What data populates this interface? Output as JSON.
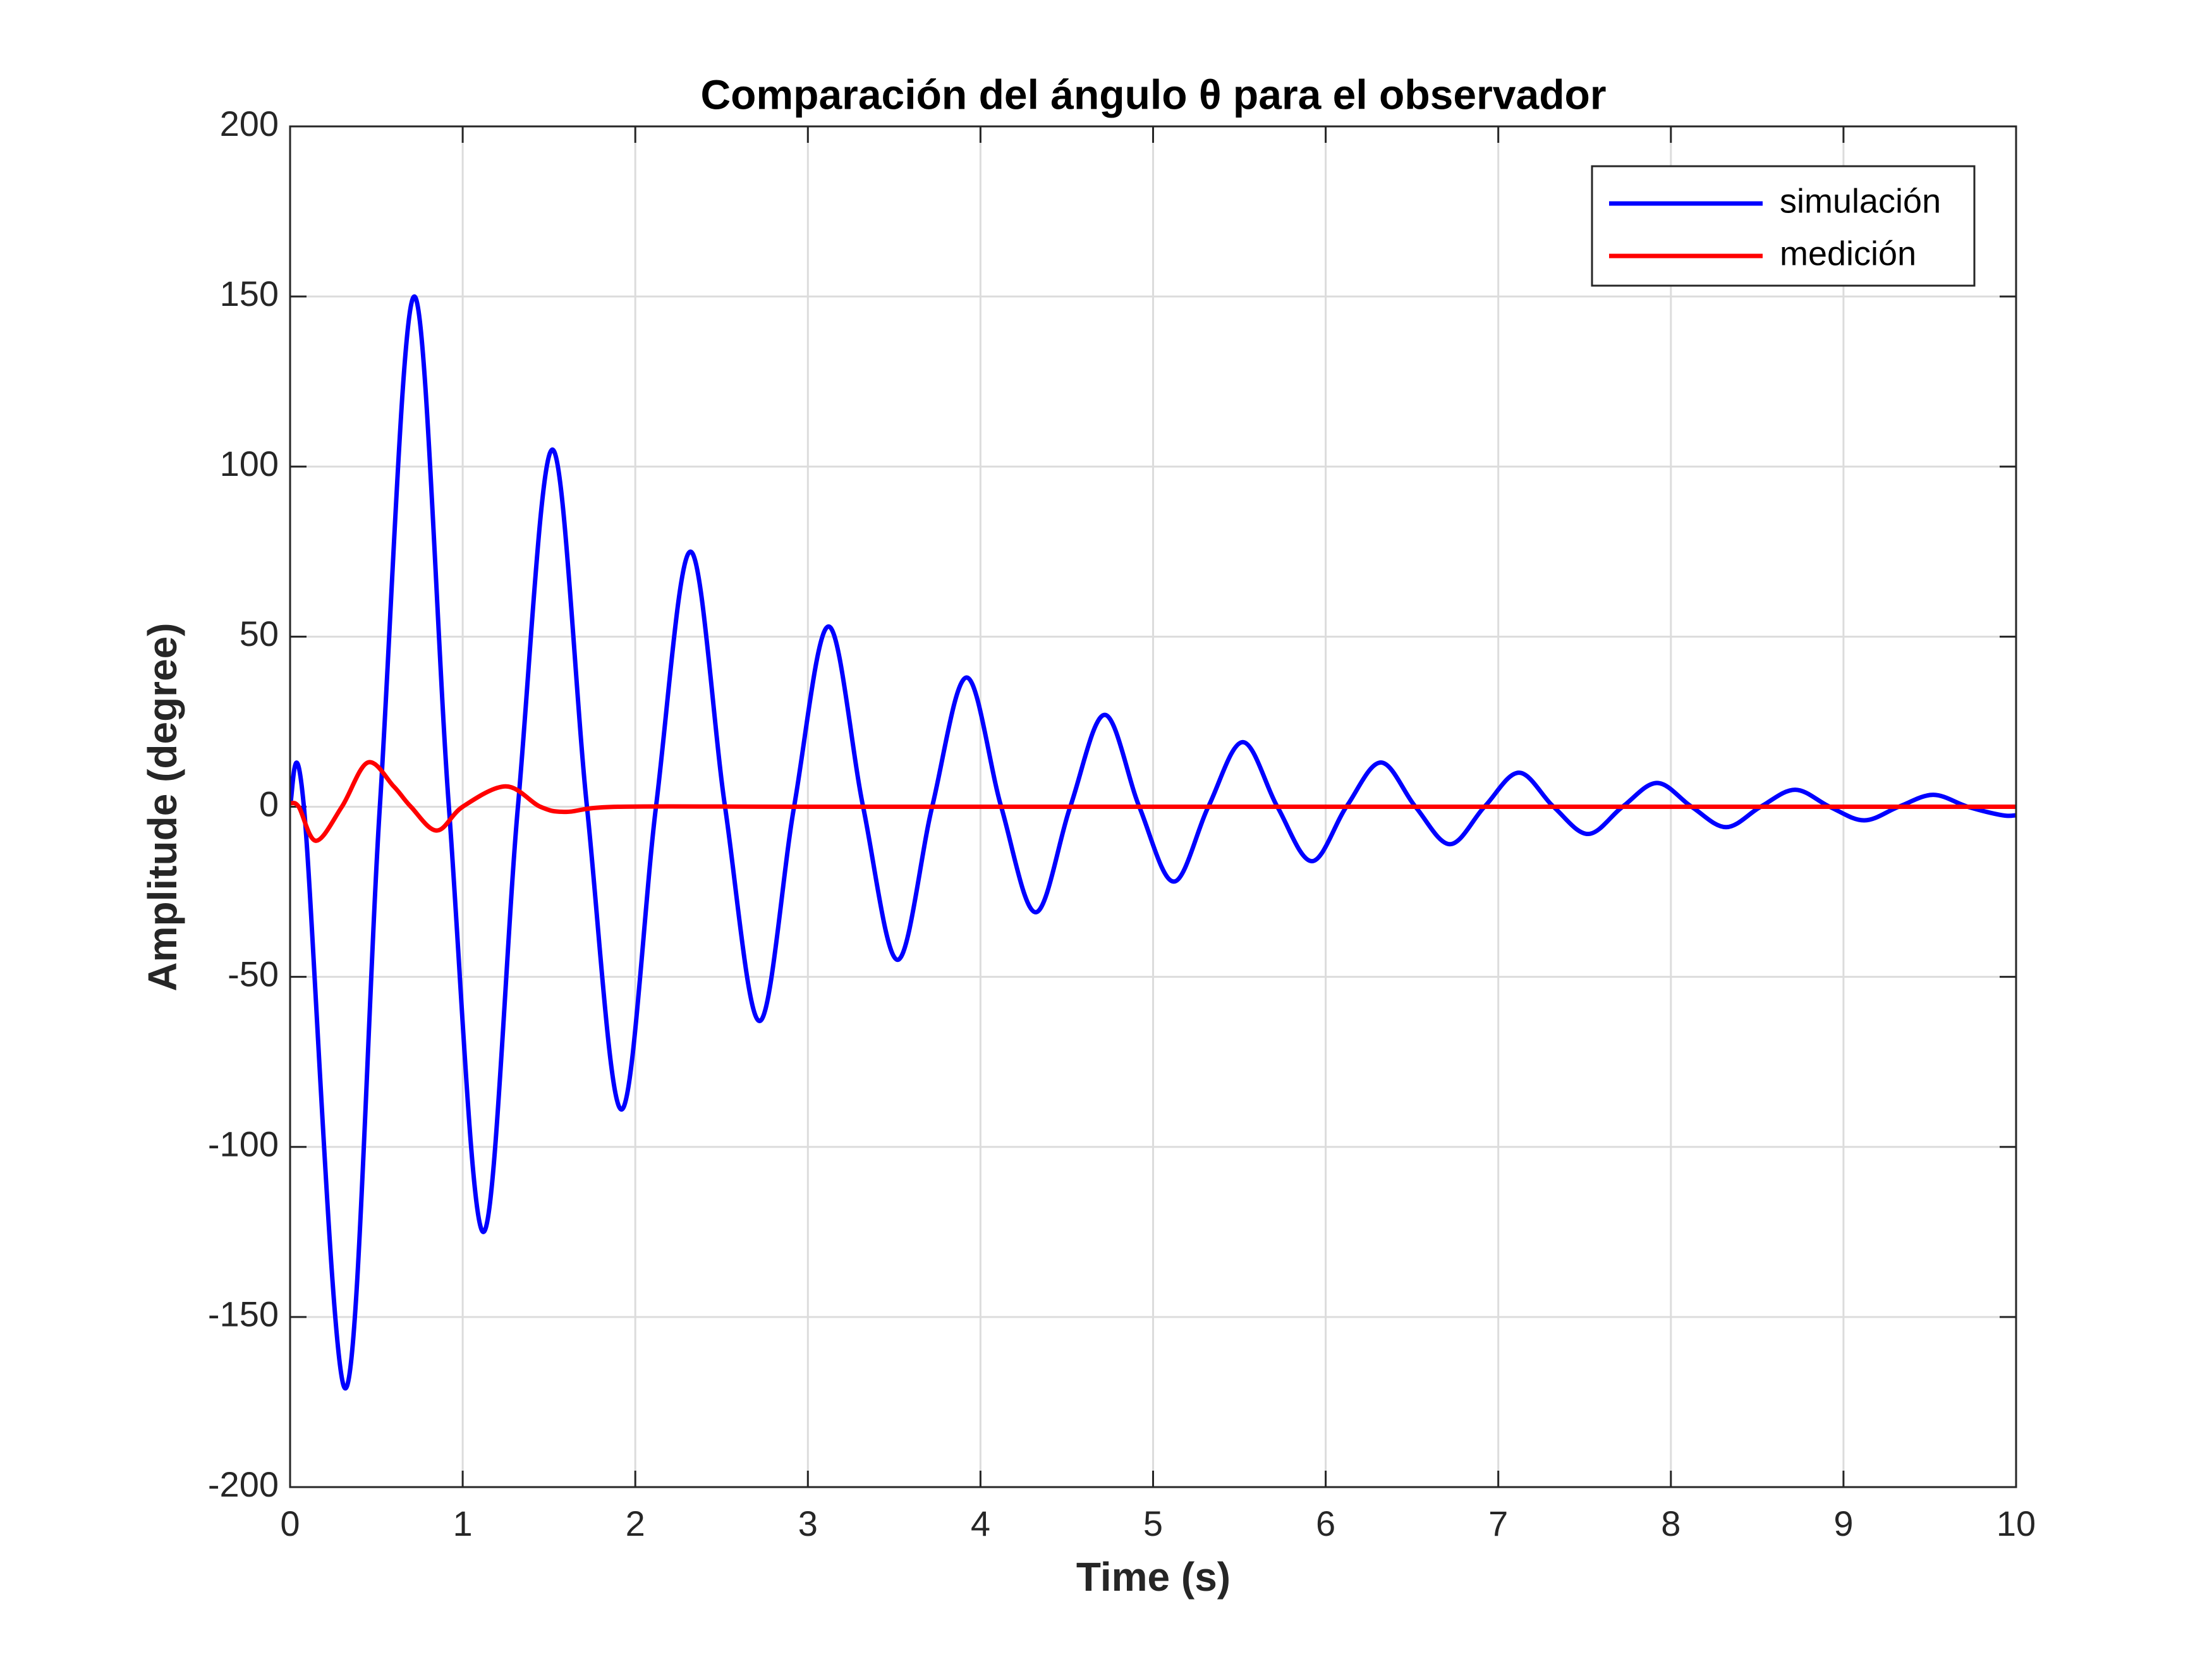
{
  "chart_data": {
    "type": "line",
    "title": "Comparación del ángulo θ para el observador",
    "xlabel": "Time (s)",
    "ylabel": "Amplitude (degree)",
    "xlim": [
      0,
      10
    ],
    "ylim": [
      -200,
      200
    ],
    "xticks": [
      0,
      1,
      2,
      3,
      4,
      5,
      6,
      7,
      8,
      9,
      10
    ],
    "yticks": [
      -200,
      -150,
      -100,
      -50,
      0,
      50,
      100,
      150,
      200
    ],
    "grid": true,
    "legend": "upper right",
    "series": [
      {
        "name": "simulación",
        "color": "#0000ff",
        "x": [
          0,
          0.08,
          0.32,
          0.52,
          0.72,
          0.92,
          1.12,
          1.32,
          1.52,
          1.72,
          1.92,
          2.12,
          2.32,
          2.52,
          2.72,
          2.92,
          3.12,
          3.32,
          3.52,
          3.72,
          3.92,
          4.12,
          4.32,
          4.52,
          4.72,
          4.92,
          5.12,
          5.32,
          5.52,
          5.72,
          5.92,
          6.12,
          6.32,
          6.52,
          6.72,
          6.92,
          7.12,
          7.32,
          7.52,
          7.72,
          7.92,
          8.12,
          8.32,
          8.52,
          8.72,
          8.92,
          9.12,
          9.32,
          9.52,
          9.72,
          9.92,
          10
        ],
        "values": [
          1,
          0,
          -171,
          0,
          150,
          0,
          -125,
          0,
          105,
          0,
          -89,
          0,
          75,
          0,
          -63,
          0,
          53,
          0,
          -45,
          0,
          38,
          0,
          -31,
          0,
          27,
          0,
          -22,
          0,
          19,
          0,
          -16,
          0,
          13,
          0,
          -11,
          0,
          10,
          0,
          -8,
          0,
          7,
          0,
          -6,
          0,
          5,
          0,
          -4,
          0,
          3.5,
          0,
          -2.5,
          -2.5
        ]
      },
      {
        "name": "medición",
        "color": "#ff0000",
        "x": [
          0,
          0.05,
          0.15,
          0.3,
          0.45,
          0.6,
          0.7,
          0.85,
          1.0,
          1.25,
          1.45,
          1.6,
          1.9,
          3,
          5,
          7,
          10
        ],
        "values": [
          1,
          0,
          -10,
          0,
          13,
          6,
          0,
          -7,
          0,
          6,
          0,
          -1.5,
          0,
          0,
          0,
          0,
          0
        ]
      }
    ]
  }
}
